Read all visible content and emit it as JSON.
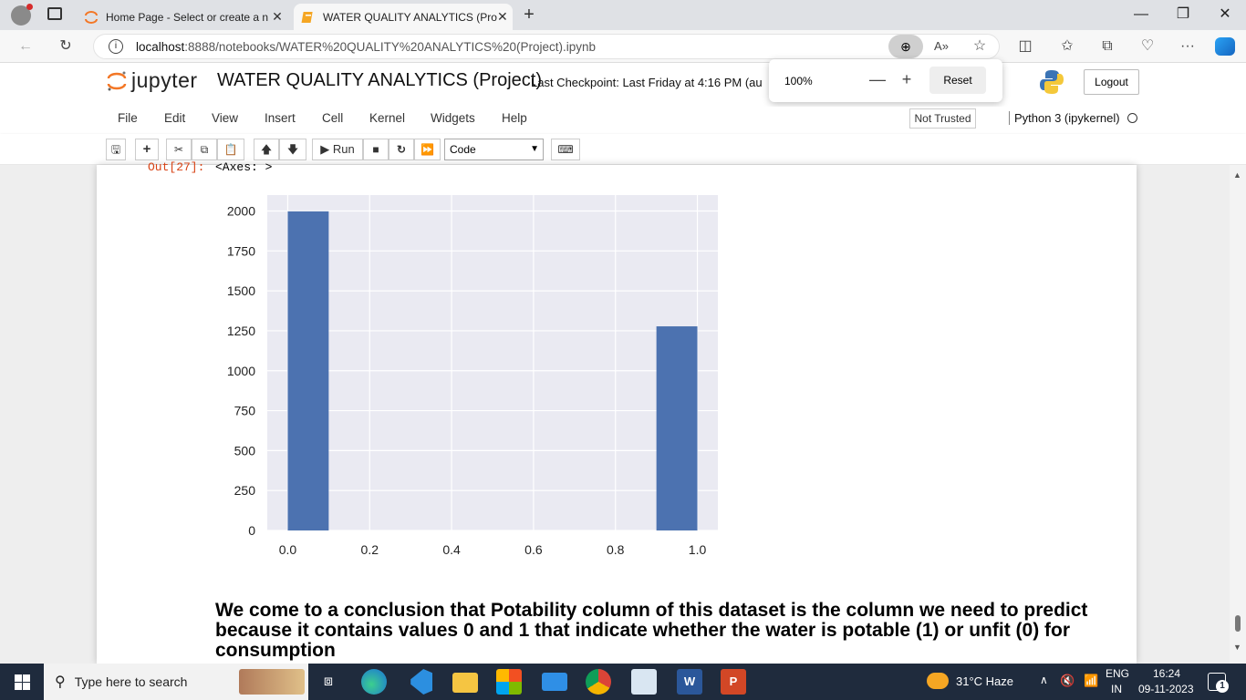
{
  "browser": {
    "tabs": [
      {
        "title": "Home Page - Select or create a n"
      },
      {
        "title": "WATER QUALITY ANALYTICS (Pro"
      }
    ],
    "url_host": "localhost",
    "url_path": ":8888/notebooks/WATER%20QUALITY%20ANALYTICS%20(Project).ipynb"
  },
  "zoom": {
    "value": "100%",
    "reset_label": "Reset"
  },
  "jupyter": {
    "logo_text": "jupyter",
    "notebook_title": "WATER QUALITY ANALYTICS (Project)",
    "checkpoint": "Last Checkpoint: Last Friday at 4:16 PM  (au",
    "logout_label": "Logout",
    "menu": [
      "File",
      "Edit",
      "View",
      "Insert",
      "Cell",
      "Kernel",
      "Widgets",
      "Help"
    ],
    "trust_status": "Not Trusted",
    "kernel": "Python 3 (ipykernel)",
    "run_label": "Run",
    "cell_type": "Code"
  },
  "cell": {
    "out_prompt": "Out[27]:",
    "out_text": "<Axes: >",
    "conclusion": "We come to a conclusion that Potability column of this dataset is the column we need to predict because it contains values 0 and 1 that indicate whether the water is potable (1) or unfit (0) for consumption"
  },
  "chart_data": {
    "type": "bar",
    "style": "histogram",
    "bins": [
      {
        "x0": 0.0,
        "x1": 0.1,
        "value": 1998
      },
      {
        "x0": 0.9,
        "x1": 1.0,
        "value": 1278
      }
    ],
    "xlim": [
      -0.05,
      1.05
    ],
    "ylim": [
      0,
      2100
    ],
    "xticks": [
      "0.0",
      "0.2",
      "0.4",
      "0.6",
      "0.8",
      "1.0"
    ],
    "yticks": [
      "0",
      "250",
      "500",
      "750",
      "1000",
      "1250",
      "1500",
      "1750",
      "2000"
    ],
    "xtick_values": [
      0.0,
      0.2,
      0.4,
      0.6,
      0.8,
      1.0
    ],
    "ytick_values": [
      0,
      250,
      500,
      750,
      1000,
      1250,
      1500,
      1750,
      2000
    ],
    "bar_color": "#4c72b0",
    "background": "#eaeaf2",
    "grid": true
  },
  "taskbar": {
    "search_placeholder": "Type here to search",
    "weather": "31°C  Haze",
    "language": "ENG",
    "region": "IN",
    "time": "16:24",
    "date": "09-11-2023",
    "notification_count": "1"
  }
}
